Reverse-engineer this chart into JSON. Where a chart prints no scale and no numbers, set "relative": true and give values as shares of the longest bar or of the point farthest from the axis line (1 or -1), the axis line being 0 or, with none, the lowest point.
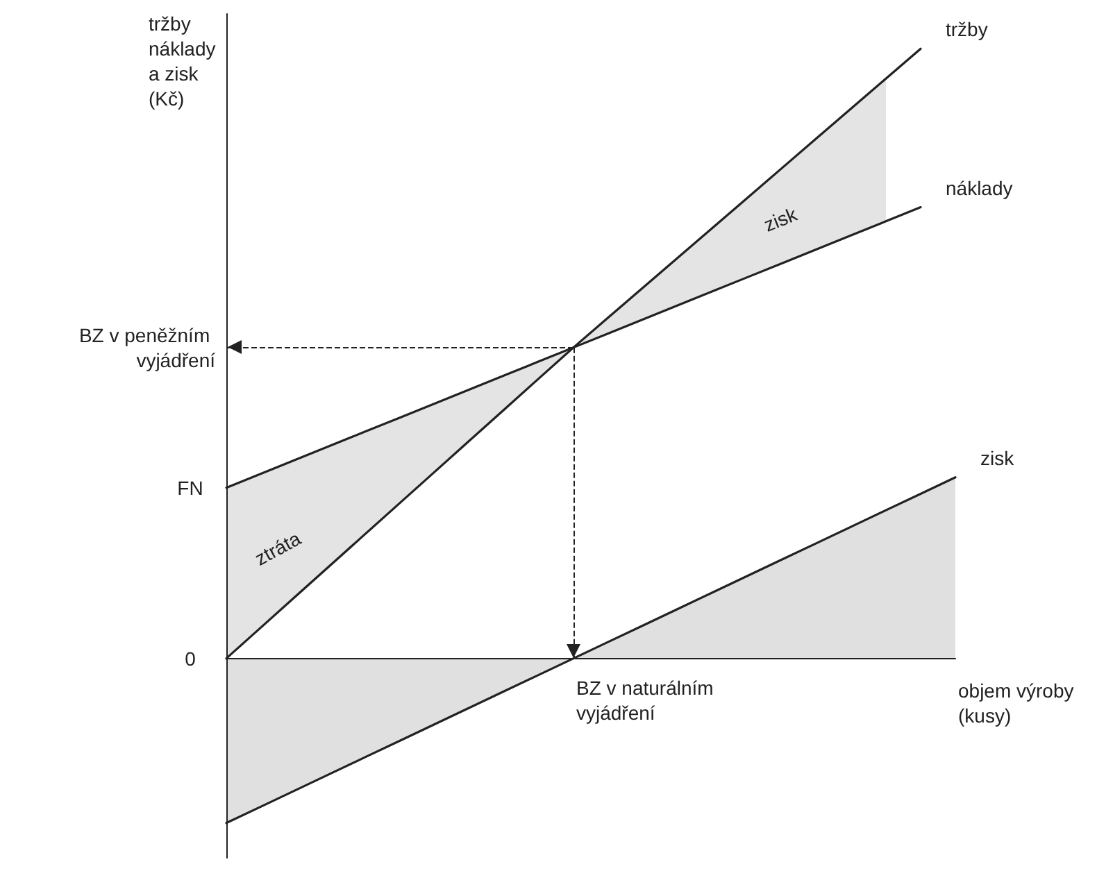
{
  "chart_data": {
    "type": "line",
    "relative": true,
    "ylabel": "tržby\nnáklady\na zisk\n(Kč)",
    "xlabel": "objem výroby\n(kusy)",
    "legend": false,
    "grid": false,
    "marker": "none",
    "line_style": "solid",
    "categories": [
      null,
      null,
      null,
      null,
      null,
      null,
      null,
      null,
      null,
      null,
      null,
      null,
      null,
      null,
      null,
      null,
      null,
      null,
      null,
      null,
      null,
      null
    ],
    "series": [
      {
        "name": "tržby",
        "color": "#222222",
        "values": [
          0,
          0.051,
          0.102,
          0.153,
          0.204,
          0.255,
          0.306,
          0.357,
          0.408,
          0.459,
          0.51,
          0.559,
          0.608,
          0.657,
          0.706,
          0.755,
          0.804,
          0.853,
          0.902,
          0.951,
          1.0,
          null
        ],
        "lower": [
          0,
          0.051,
          0.102,
          0.153,
          0.204,
          0.255,
          0.306,
          0.357,
          0.408,
          0.459,
          0.51,
          0.533,
          0.556,
          0.579,
          0.602,
          0.625,
          0.648,
          0.671,
          0.694,
          0.717,
          null,
          null
        ],
        "upper": [
          0.28,
          0.303,
          0.326,
          0.349,
          0.372,
          0.395,
          0.418,
          0.441,
          0.464,
          0.487,
          0.51,
          0.559,
          0.608,
          0.657,
          0.706,
          0.755,
          0.804,
          0.853,
          0.902,
          0.951,
          null,
          null
        ]
      },
      {
        "name": "náklady",
        "color": "#222222",
        "values": [
          0.28,
          0.303,
          0.326,
          0.349,
          0.372,
          0.395,
          0.418,
          0.441,
          0.464,
          0.487,
          0.51,
          0.533,
          0.556,
          0.579,
          0.602,
          0.625,
          0.648,
          0.671,
          0.694,
          0.717,
          0.74,
          null
        ]
      },
      {
        "name": "zisk",
        "type": "area",
        "color": "#222222",
        "values": [
          -0.27,
          -0.243,
          -0.216,
          -0.189,
          -0.162,
          -0.135,
          -0.108,
          -0.081,
          -0.054,
          -0.027,
          0,
          0.027,
          0.054,
          0.081,
          0.108,
          0.135,
          0.162,
          0.189,
          0.216,
          0.243,
          0.27,
          0.297
        ]
      }
    ],
    "ref_lines": [
      {
        "axis": "y",
        "value": 0.51,
        "label": "BZ v peněžním vyjádření",
        "line_style": "dashed"
      },
      {
        "axis": "x",
        "label": "BZ v naturálním vyjádření",
        "line_style": "dashed"
      }
    ],
    "annotations": [
      "0",
      "FN",
      "ztráta",
      "zisk"
    ]
  }
}
